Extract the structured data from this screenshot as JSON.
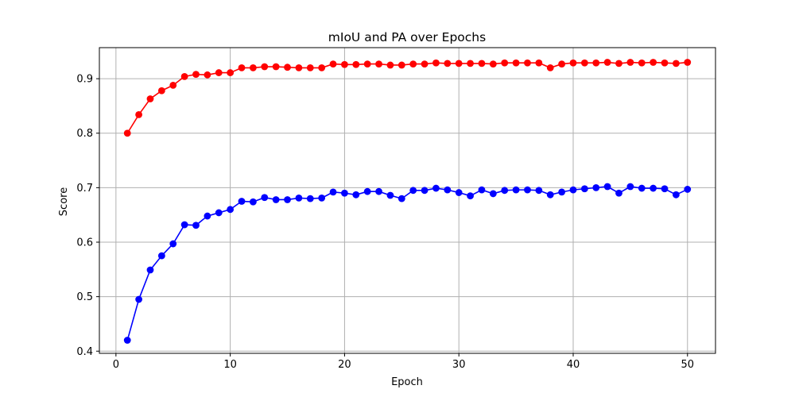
{
  "chart_data": {
    "type": "line",
    "title": "mIoU and PA over Epochs",
    "xlabel": "Epoch",
    "ylabel": "Score",
    "xlim": [
      -1.45,
      52.45
    ],
    "ylim": [
      0.396,
      0.957
    ],
    "grid": true,
    "legend": "none",
    "x_ticks": [
      0,
      10,
      20,
      30,
      40,
      50
    ],
    "y_ticks": [
      0.4,
      0.5,
      0.6,
      0.7,
      0.8,
      0.9
    ],
    "x_tick_labels": [
      "0",
      "10",
      "20",
      "30",
      "40",
      "50"
    ],
    "y_tick_labels": [
      "0.4",
      "0.5",
      "0.6",
      "0.7",
      "0.8",
      "0.9"
    ],
    "x": [
      1,
      2,
      3,
      4,
      5,
      6,
      7,
      8,
      9,
      10,
      11,
      12,
      13,
      14,
      15,
      16,
      17,
      18,
      19,
      20,
      21,
      22,
      23,
      24,
      25,
      26,
      27,
      28,
      29,
      30,
      31,
      32,
      33,
      34,
      35,
      36,
      37,
      38,
      39,
      40,
      41,
      42,
      43,
      44,
      45,
      46,
      47,
      48,
      49,
      50
    ],
    "series": [
      {
        "color": "#ff0000",
        "values": [
          0.8,
          0.834,
          0.863,
          0.878,
          0.888,
          0.904,
          0.908,
          0.907,
          0.911,
          0.911,
          0.92,
          0.92,
          0.922,
          0.922,
          0.921,
          0.92,
          0.92,
          0.92,
          0.927,
          0.926,
          0.926,
          0.927,
          0.927,
          0.925,
          0.925,
          0.927,
          0.927,
          0.929,
          0.928,
          0.928,
          0.928,
          0.928,
          0.927,
          0.929,
          0.929,
          0.929,
          0.929,
          0.92,
          0.927,
          0.929,
          0.929,
          0.929,
          0.93,
          0.928,
          0.93,
          0.929,
          0.93,
          0.929,
          0.928,
          0.93
        ]
      },
      {
        "color": "#0000ff",
        "values": [
          0.42,
          0.495,
          0.549,
          0.575,
          0.597,
          0.632,
          0.631,
          0.648,
          0.654,
          0.66,
          0.675,
          0.674,
          0.682,
          0.678,
          0.678,
          0.681,
          0.68,
          0.681,
          0.692,
          0.69,
          0.687,
          0.693,
          0.693,
          0.686,
          0.68,
          0.695,
          0.695,
          0.699,
          0.696,
          0.691,
          0.685,
          0.696,
          0.689,
          0.695,
          0.696,
          0.696,
          0.695,
          0.687,
          0.692,
          0.696,
          0.698,
          0.7,
          0.702,
          0.69,
          0.702,
          0.699,
          0.699,
          0.698,
          0.687,
          0.697
        ]
      }
    ]
  }
}
